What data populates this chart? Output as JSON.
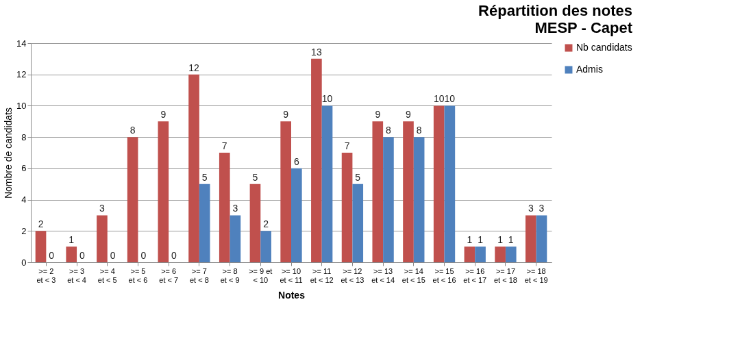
{
  "chart_data": {
    "type": "bar",
    "title": "Répartition des notes",
    "subtitle": "MESP - Capet",
    "xlabel": "Notes",
    "ylabel": "Nombre de candidats",
    "categories": [
      ">= 2 et < 3",
      ">= 3 et < 4",
      ">= 4 et < 5",
      ">= 5 et < 6",
      ">= 6 et < 7",
      ">= 7 et < 8",
      ">= 8 et < 9",
      ">= 9 et < 10",
      ">= 10 et < 11",
      ">= 11 et < 12",
      ">= 12 et < 13",
      ">= 13 et < 14",
      ">= 14 et < 15",
      ">= 15 et < 16",
      ">= 16 et < 17",
      ">= 17 et < 18",
      ">= 18 et < 19"
    ],
    "series": [
      {
        "name": "Nb candidats",
        "color": "#c0504d",
        "values": [
          2,
          1,
          3,
          8,
          9,
          12,
          7,
          5,
          9,
          13,
          7,
          9,
          9,
          10,
          1,
          1,
          3
        ]
      },
      {
        "name": "Admis",
        "color": "#4f81bd",
        "values": [
          0,
          0,
          0,
          0,
          0,
          5,
          3,
          2,
          6,
          10,
          5,
          8,
          8,
          10,
          1,
          1,
          3
        ]
      }
    ],
    "ylim": [
      0,
      14
    ],
    "yticks": [
      0,
      2,
      4,
      6,
      8,
      10,
      12,
      14
    ],
    "grid": "y",
    "legend": "right",
    "data_labels": true
  }
}
